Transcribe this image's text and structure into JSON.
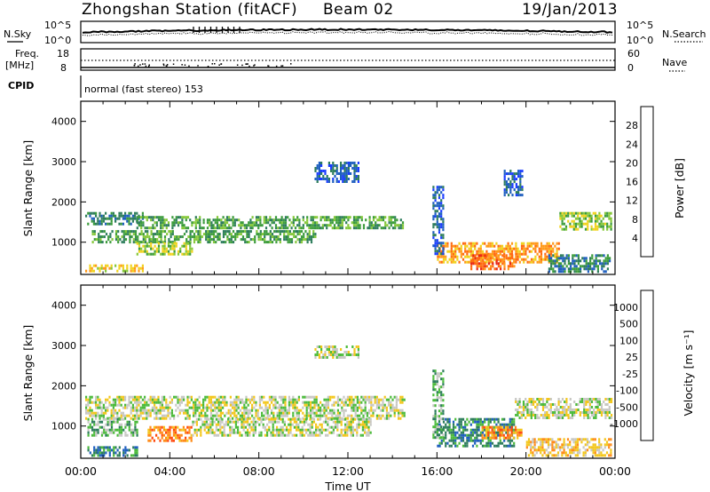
{
  "header": {
    "station_title": "Zhongshan Station (fitACF)",
    "beam": "Beam 02",
    "date": "19/Jan/2013"
  },
  "summary": {
    "nsky_label": "N.Sky",
    "nsearch_label": "N.Search",
    "freq_label_line1": "Freq.",
    "freq_label_line2": "[MHz]",
    "nave_label": "Nave",
    "cpid_label": "CPID",
    "cpid_text": "normal (fast stereo) 153",
    "noise_ticks": [
      "10^5",
      "10^0"
    ],
    "noise_ticks_right": [
      "10^5",
      "10^0"
    ],
    "freq_ticks": [
      "18",
      "8"
    ],
    "nave_ticks": [
      "60",
      "0"
    ]
  },
  "chart_data": [
    {
      "type": "heatmap",
      "ylabel": "Slant Range [km]",
      "y_ticks": [
        "1000",
        "2000",
        "3000",
        "4000"
      ],
      "ylim": [
        200,
        4500
      ],
      "x_ticks": [
        "00:00",
        "04:00",
        "08:00",
        "12:00",
        "16:00",
        "20:00",
        "00:00"
      ],
      "xlim_hours": [
        0,
        24
      ],
      "colorbar": {
        "label": "Power [dB]",
        "ticks": [
          "4",
          "8",
          "12",
          "16",
          "20",
          "24",
          "28"
        ],
        "colors": [
          "#1a3cff",
          "#1f5fbf",
          "#2e7d5c",
          "#3c9c3c",
          "#86c83a",
          "#f1d21e",
          "#ff9a1a",
          "#ff6a10",
          "#e82818"
        ]
      },
      "echo_regions": [
        {
          "t0": 0.2,
          "t1": 2.8,
          "r0": 1450,
          "r1": 1750,
          "level": 2
        },
        {
          "t0": 0.5,
          "t1": 10.5,
          "r0": 1000,
          "r1": 1300,
          "level": 3
        },
        {
          "t0": 2.5,
          "t1": 14.5,
          "r0": 1350,
          "r1": 1650,
          "level": 3
        },
        {
          "t0": 2.5,
          "t1": 5.0,
          "r0": 700,
          "r1": 1000,
          "level": 4
        },
        {
          "t0": 0.2,
          "t1": 2.8,
          "r0": 300,
          "r1": 450,
          "level": 5
        },
        {
          "t0": 10.5,
          "t1": 12.5,
          "r0": 2500,
          "r1": 3000,
          "level": 1
        },
        {
          "t0": 16.0,
          "t1": 21.5,
          "r0": 500,
          "r1": 1000,
          "level": 6
        },
        {
          "t0": 17.5,
          "t1": 19.5,
          "r0": 350,
          "r1": 700,
          "level": 7
        },
        {
          "t0": 21.5,
          "t1": 23.8,
          "r0": 1300,
          "r1": 1750,
          "level": 4
        },
        {
          "t0": 21.0,
          "t1": 23.8,
          "r0": 300,
          "r1": 700,
          "level": 2
        },
        {
          "t0": 19.0,
          "t1": 19.8,
          "r0": 2200,
          "r1": 2800,
          "level": 1
        },
        {
          "t0": 15.8,
          "t1": 16.3,
          "r0": 700,
          "r1": 2400,
          "level": 1
        }
      ]
    },
    {
      "type": "heatmap",
      "ylabel": "Slant Range [km]",
      "y_ticks": [
        "1000",
        "2000",
        "3000",
        "4000"
      ],
      "ylim": [
        200,
        4500
      ],
      "x_ticks": [
        "00:00",
        "04:00",
        "08:00",
        "12:00",
        "16:00",
        "20:00",
        "00:00"
      ],
      "xlim_hours": [
        0,
        24
      ],
      "xlabel": "Time UT",
      "colorbar": {
        "label": "Velocity [m s⁻¹]",
        "ticks": [
          "1000",
          "500",
          "100",
          "25",
          "-25",
          "-100",
          "-500",
          "-1000"
        ],
        "colors": [
          "#1a3cff",
          "#1f5fbf",
          "#2e7d5c",
          "#4cbb3c",
          "#c8c8c4",
          "#f3c71e",
          "#ff8c1a",
          "#ff4a10",
          "#e82818"
        ]
      },
      "echo_regions": [
        {
          "t0": 0.2,
          "t1": 14.5,
          "r0": 1200,
          "r1": 1750,
          "level": 4
        },
        {
          "t0": 0.3,
          "t1": 2.5,
          "r0": 800,
          "r1": 1200,
          "level": 3
        },
        {
          "t0": 0.3,
          "t1": 2.5,
          "r0": 300,
          "r1": 500,
          "level": 2
        },
        {
          "t0": 3.0,
          "t1": 5.0,
          "r0": 650,
          "r1": 1000,
          "level": 6
        },
        {
          "t0": 5.0,
          "t1": 13.0,
          "r0": 800,
          "r1": 1200,
          "level": 4
        },
        {
          "t0": 16.0,
          "t1": 19.5,
          "r0": 500,
          "r1": 1200,
          "level": 2
        },
        {
          "t0": 18.0,
          "t1": 19.8,
          "r0": 700,
          "r1": 1000,
          "level": 6
        },
        {
          "t0": 19.5,
          "t1": 23.8,
          "r0": 1200,
          "r1": 1700,
          "level": 4
        },
        {
          "t0": 20.0,
          "t1": 23.8,
          "r0": 300,
          "r1": 700,
          "level": 5
        },
        {
          "t0": 10.5,
          "t1": 12.5,
          "r0": 2700,
          "r1": 3000,
          "level": 4
        },
        {
          "t0": 15.8,
          "t1": 16.3,
          "r0": 700,
          "r1": 2400,
          "level": 3
        }
      ]
    }
  ]
}
